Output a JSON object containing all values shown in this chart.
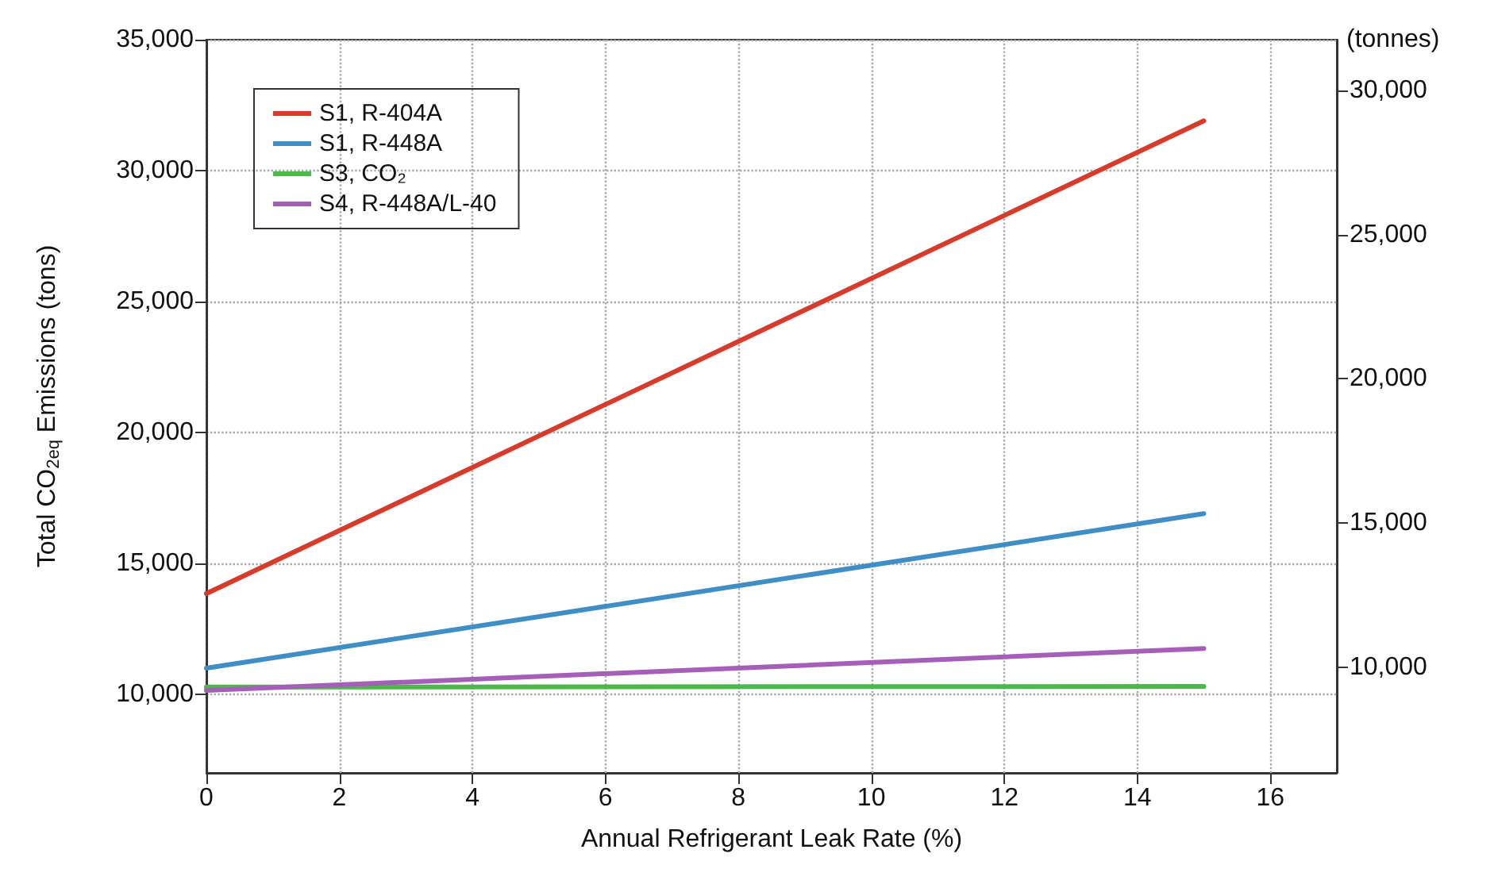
{
  "chart_data": {
    "type": "line",
    "xlabel": "Annual Refrigerant Leak Rate (%)",
    "ylabel": "Total CO$_{2eq}$ Emissions (tons)",
    "y2label": "(tonnes)",
    "x": [
      0,
      15
    ],
    "series": [
      {
        "name": "S1, R-404A",
        "color": "#d93b2b",
        "values": [
          13850,
          31900
        ]
      },
      {
        "name": "S1, R-448A",
        "color": "#3f8fc6",
        "values": [
          11000,
          16900
        ]
      },
      {
        "name": "S3, CO₂",
        "color": "#4cb84a",
        "values": [
          10280,
          10300
        ]
      },
      {
        "name": "S4, R-448A/L-40",
        "color": "#a65fb8",
        "values": [
          10150,
          11750
        ]
      }
    ],
    "xlim": [
      0,
      17
    ],
    "xticks": [
      0,
      2,
      4,
      6,
      8,
      10,
      12,
      14,
      16
    ],
    "ylim": [
      7000,
      35000
    ],
    "yticks": [
      {
        "value": 10000,
        "label": "10,000"
      },
      {
        "value": 15000,
        "label": "15,000"
      },
      {
        "value": 20000,
        "label": "20,000"
      },
      {
        "value": 25000,
        "label": "25,000"
      },
      {
        "value": 30000,
        "label": "30,000"
      },
      {
        "value": 35000,
        "label": "35,000"
      }
    ],
    "y2lim": [
      6350,
      31751
    ],
    "y2ticks": [
      {
        "value": 10000,
        "label": "10,000"
      },
      {
        "value": 15000,
        "label": "15,000"
      },
      {
        "value": 20000,
        "label": "20,000"
      },
      {
        "value": 25000,
        "label": "25,000"
      },
      {
        "value": 30000,
        "label": "30,000"
      }
    ],
    "grid": true,
    "legend": "top left",
    "line_style": "solid"
  }
}
